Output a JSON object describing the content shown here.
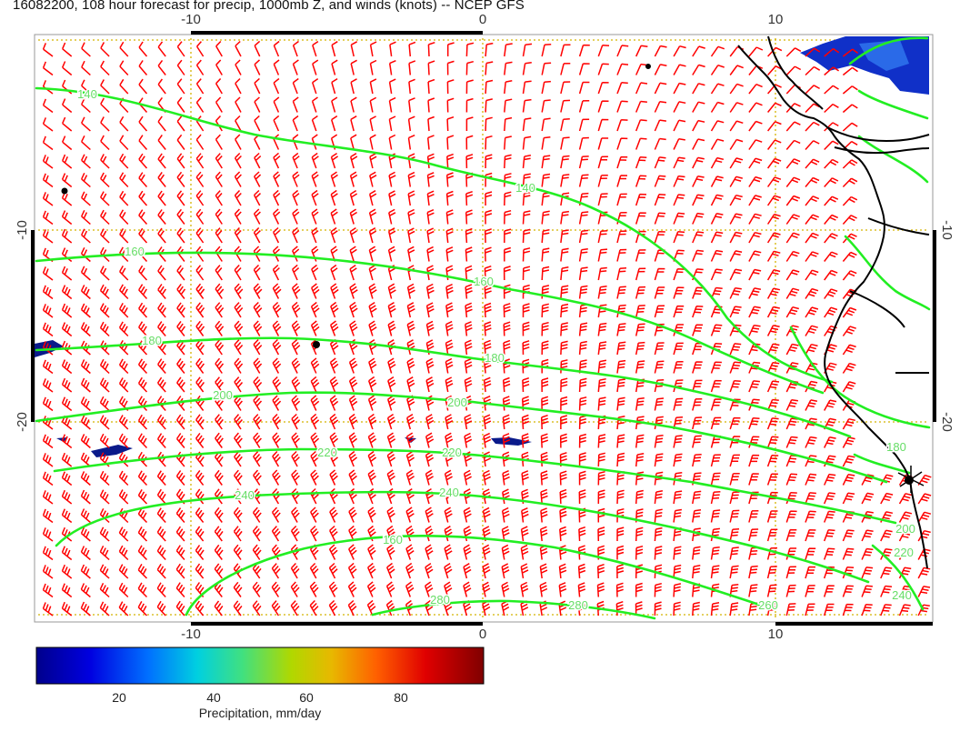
{
  "title": "16082200, 108 hour forecast for precip, 1000mb Z, and winds (knots) -- NCEP GFS",
  "axes": {
    "x_ticks": [
      "-10",
      "0",
      "10"
    ],
    "y_ticks": [
      "-10",
      "-20"
    ]
  },
  "contours": [
    {
      "label": "140"
    },
    {
      "label": "140"
    },
    {
      "label": "160"
    },
    {
      "label": "160"
    },
    {
      "label": "180"
    },
    {
      "label": "180"
    },
    {
      "label": "200"
    },
    {
      "label": "200"
    },
    {
      "label": "220"
    },
    {
      "label": "220"
    },
    {
      "label": "240"
    },
    {
      "label": "240"
    },
    {
      "label": "160"
    },
    {
      "label": "280"
    },
    {
      "label": "280"
    },
    {
      "label": "260"
    },
    {
      "label": "200"
    },
    {
      "label": "220"
    },
    {
      "label": "240"
    },
    {
      "label": "180"
    }
  ],
  "colorbar": {
    "ticks": [
      "20",
      "40",
      "60",
      "80"
    ],
    "label": "Precipitation, mm/day",
    "colors": [
      "#00008c",
      "#0000e0",
      "#0070ff",
      "#00d0e0",
      "#40e080",
      "#b0d800",
      "#e8b800",
      "#ff6000",
      "#e00000",
      "#800000"
    ]
  },
  "colors": {
    "contour": "#22ee22",
    "wind_barb": "#ff0000",
    "grid": "#d4b400",
    "coast": "#000000"
  }
}
